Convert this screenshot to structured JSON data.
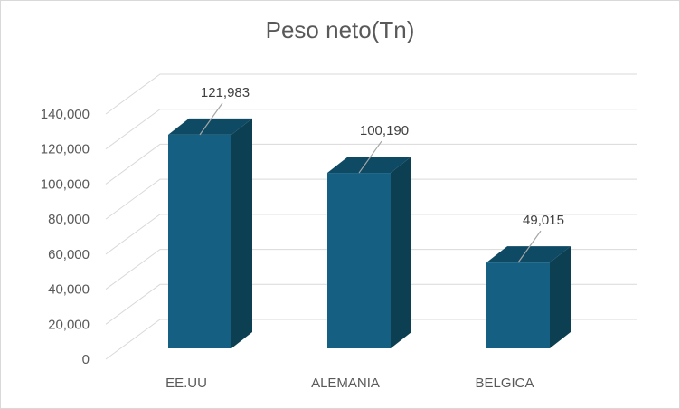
{
  "chart_data": {
    "type": "bar",
    "title": "Peso neto(Tn)",
    "categories": [
      "EE.UU",
      "ALEMANIA",
      "BELGICA"
    ],
    "values": [
      121983,
      100190,
      49015
    ],
    "data_labels": [
      "121,983",
      "100,190",
      "49,015"
    ],
    "y_ticks": [
      "0",
      "20,000",
      "40,000",
      "60,000",
      "80,000",
      "100,000",
      "120,000",
      "140,000"
    ],
    "ylim": [
      0,
      140000
    ],
    "grid": true,
    "legend": "none",
    "style": "3d-column",
    "colors": {
      "bar_front": "#156082",
      "bar_side": "#0d3f52",
      "bar_top": "#0f4a64",
      "grid": "#d9d9d9"
    }
  }
}
